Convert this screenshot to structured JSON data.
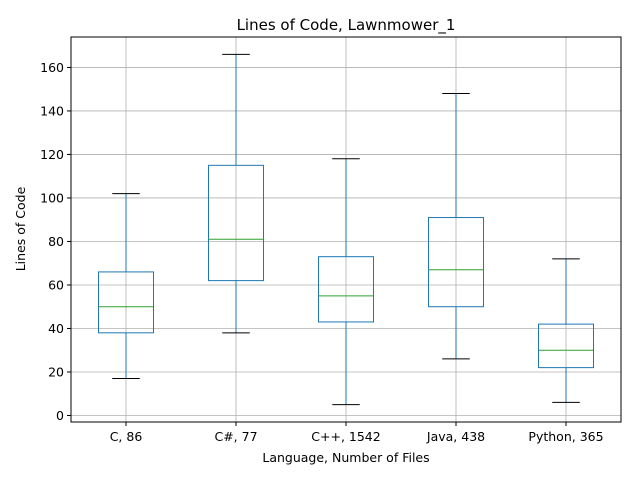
{
  "chart_data": {
    "type": "box",
    "title": "Lines of Code, Lawnmower_1",
    "xlabel": "Language, Number of Files",
    "ylabel": "Lines of Code",
    "ylim": [
      -3,
      174
    ],
    "yticks": [
      0,
      20,
      40,
      60,
      80,
      100,
      120,
      140,
      160
    ],
    "grid": true,
    "categories": [
      "C, 86",
      "C#, 77",
      "C++, 1542",
      "Java, 438",
      "Python, 365"
    ],
    "boxes": [
      {
        "whisker_low": 17,
        "q1": 38,
        "median": 50,
        "q3": 66,
        "whisker_high": 102
      },
      {
        "whisker_low": 38,
        "q1": 62,
        "median": 81,
        "q3": 115,
        "whisker_high": 166
      },
      {
        "whisker_low": 5,
        "q1": 43,
        "median": 55,
        "q3": 73,
        "whisker_high": 118
      },
      {
        "whisker_low": 26,
        "q1": 50,
        "median": 67,
        "q3": 91,
        "whisker_high": 148
      },
      {
        "whisker_low": 6,
        "q1": 22,
        "median": 30,
        "q3": 42,
        "whisker_high": 72
      }
    ],
    "colors": {
      "box": "#1f77b4",
      "median": "#2ca02c",
      "caps": "#000000",
      "grid": "#b0b0b0"
    }
  }
}
